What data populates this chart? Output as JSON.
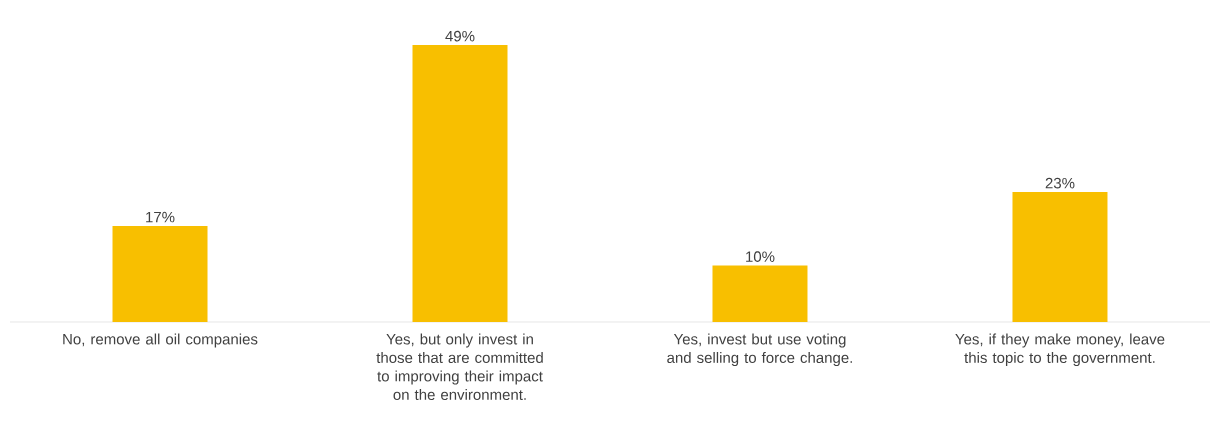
{
  "chart_data": {
    "type": "bar",
    "categories": [
      "No, remove all oil companies",
      "Yes, but only invest in those that are committed to improving their impact on the environment.",
      "Yes, invest but use voting and selling to force change.",
      "Yes, if they make money, leave this topic to the government."
    ],
    "values": [
      17,
      49,
      10,
      23
    ],
    "value_labels": [
      "17%",
      "49%",
      "10%",
      "23%"
    ],
    "color": "#f8bf00"
  }
}
